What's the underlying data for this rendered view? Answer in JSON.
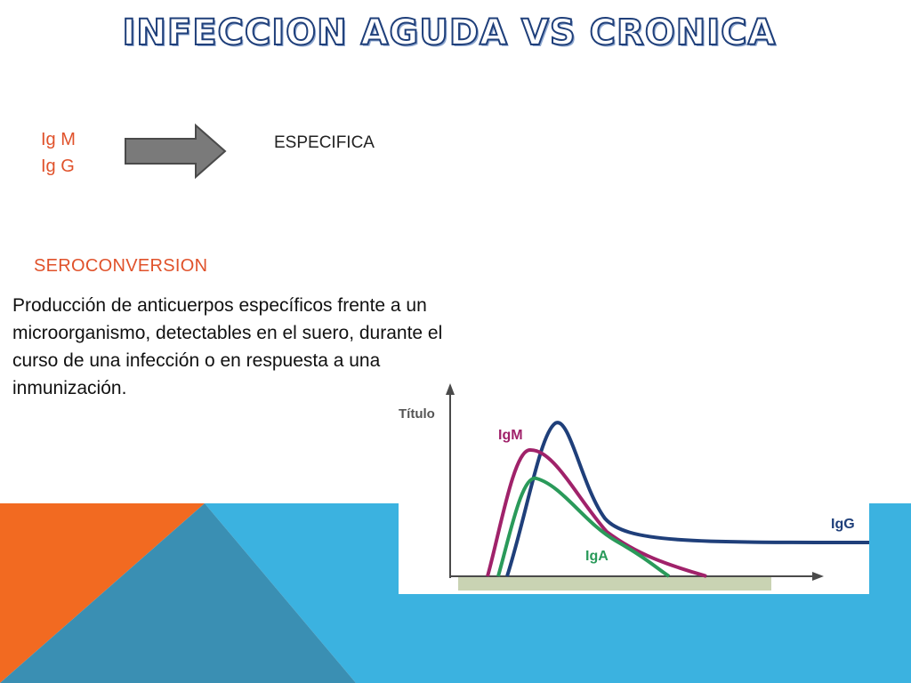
{
  "slide": {
    "title": "INFECCION AGUDA VS CRONICA",
    "immunoglobulins": [
      "Ig M",
      "Ig G"
    ],
    "arrow_target": "ESPECIFICA",
    "section_heading": "SEROCONVERSION",
    "definition": "Producción de anticuerpos específicos frente a un microorganismo, detectables en el suero, durante el curso de una infección o en respuesta a una inmunización."
  },
  "colors": {
    "accent_text": "#e0522b",
    "orange": "#f26a21",
    "blue_light": "#3bb2e0",
    "blue_dark": "#3a8fb3",
    "title_outline": "#1f3f7a",
    "arrow_fill": "#7a7a7a"
  },
  "chart_data": {
    "type": "line",
    "ylabel": "Título",
    "xlabel": "",
    "series": [
      {
        "name": "IgM",
        "color": "#a0226a"
      },
      {
        "name": "IgG",
        "color": "#1f3f7a"
      },
      {
        "name": "IgA",
        "color": "#2a9a5a"
      }
    ]
  }
}
